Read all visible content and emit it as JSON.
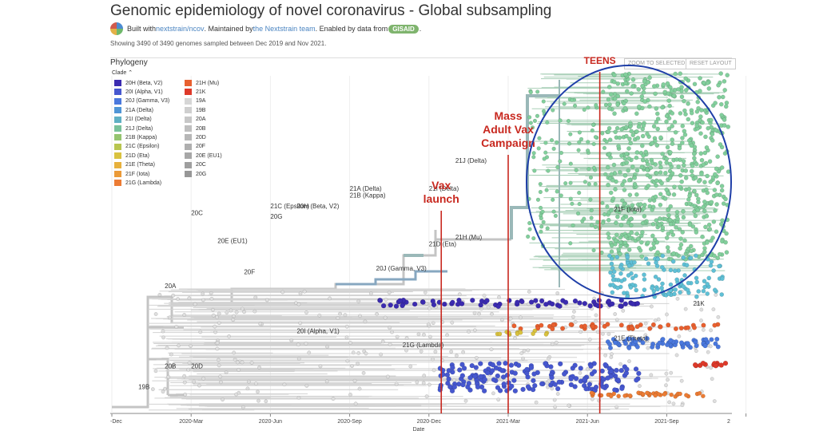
{
  "header": {
    "title": "Genomic epidemiology of novel coronavirus - Global subsampling",
    "built_prefix": "Built with ",
    "built_link": "nextstrain/ncov",
    "maintained_text": ". Maintained by ",
    "team_link": "the Nextstrain team",
    "enabled_text": ". Enabled by data from ",
    "gisaid": "GISAID",
    "end_period": ".",
    "showing": "Showing 3490 of 3490 genomes sampled between Dec 2019 and Nov 2021."
  },
  "panel": {
    "title": "Phylogeny",
    "zoom_button": "ZOOM TO SELECTED",
    "reset_button": "RESET LAYOUT"
  },
  "legend": {
    "title": "Clade",
    "col1": [
      {
        "label": "20H (Beta, V2)",
        "color": "#3b2bb0"
      },
      {
        "label": "20I (Alpha, V1)",
        "color": "#4657cf"
      },
      {
        "label": "20J (Gamma, V3)",
        "color": "#4a78dd"
      },
      {
        "label": "21A (Delta)",
        "color": "#4f95d6"
      },
      {
        "label": "21I (Delta)",
        "color": "#5fb0c4"
      },
      {
        "label": "21J (Delta)",
        "color": "#79c19a"
      },
      {
        "label": "21B (Kappa)",
        "color": "#95c46f"
      },
      {
        "label": "21C (Epsilon)",
        "color": "#b8c54f"
      },
      {
        "label": "21D (Eta)",
        "color": "#d9c23f"
      },
      {
        "label": "21E (Theta)",
        "color": "#e7b13c"
      },
      {
        "label": "21F (Iota)",
        "color": "#eb9a38"
      },
      {
        "label": "21G (Lambda)",
        "color": "#ec7c34"
      }
    ],
    "col2": [
      {
        "label": "21H (Mu)",
        "color": "#e8602f"
      },
      {
        "label": "21K",
        "color": "#de3a2a"
      },
      {
        "label": "19A",
        "color": "#d6d6d6"
      },
      {
        "label": "19B",
        "color": "#cfcfcf"
      },
      {
        "label": "20A",
        "color": "#c7c7c7"
      },
      {
        "label": "20B",
        "color": "#bfbfbf"
      },
      {
        "label": "20D",
        "color": "#b7b7b7"
      },
      {
        "label": "20F",
        "color": "#afafaf"
      },
      {
        "label": "20E (EU1)",
        "color": "#a7a7a7"
      },
      {
        "label": "20C",
        "color": "#9f9f9f"
      },
      {
        "label": "20G",
        "color": "#979797"
      }
    ]
  },
  "chart_data": {
    "type": "scatter",
    "xlabel": "Date",
    "x_ticks": [
      "-Dec",
      "2020-Mar",
      "2020-Jun",
      "2020-Sep",
      "2020-Dec",
      "2021-Mar",
      "2021-Jun",
      "2021-Sep",
      "2"
    ],
    "clade_labels": [
      {
        "label": "21J (Delta)",
        "date": "2021-Jan",
        "rank": 0.28
      },
      {
        "label": "21A (Delta)",
        "date": "2020-Sep",
        "rank": 0.36
      },
      {
        "label": "21B (Kappa)",
        "date": "2020-Sep",
        "rank": 0.38
      },
      {
        "label": "21I (Delta)",
        "date": "2020-Dec",
        "rank": 0.36
      },
      {
        "label": "21C (Epsilon)",
        "date": "2020-Jun",
        "rank": 0.41
      },
      {
        "label": "20H (Beta, V2)",
        "date": "2020-Jul",
        "rank": 0.41
      },
      {
        "label": "20C",
        "date": "2020-Mar",
        "rank": 0.43
      },
      {
        "label": "20G",
        "date": "2020-Jun",
        "rank": 0.44
      },
      {
        "label": "21F (Iota)",
        "date": "2021-Jul",
        "rank": 0.42
      },
      {
        "label": "20E (EU1)",
        "date": "2020-Apr",
        "rank": 0.51
      },
      {
        "label": "21D (Eta)",
        "date": "2020-Dec",
        "rank": 0.52
      },
      {
        "label": "21H (Mu)",
        "date": "2021-Jan",
        "rank": 0.5
      },
      {
        "label": "20F",
        "date": "2020-May",
        "rank": 0.6
      },
      {
        "label": "20J (Gamma, V3)",
        "date": "2020-Oct",
        "rank": 0.59
      },
      {
        "label": "20A",
        "date": "2020-Feb",
        "rank": 0.64
      },
      {
        "label": "21K",
        "date": "2021-Oct",
        "rank": 0.69
      },
      {
        "label": "20I (Alpha, V1)",
        "date": "2020-Jul",
        "rank": 0.77
      },
      {
        "label": "21E (Theta)",
        "date": "2021-Jul",
        "rank": 0.79
      },
      {
        "label": "21G (Lambda)",
        "date": "2020-Nov",
        "rank": 0.81
      },
      {
        "label": "20B",
        "date": "2020-Feb",
        "rank": 0.87
      },
      {
        "label": "20D",
        "date": "2020-Mar",
        "rank": 0.87
      },
      {
        "label": "19B",
        "date": "2020-Jan",
        "rank": 0.93
      }
    ],
    "annotations": [
      {
        "text": [
          "Vax",
          "launch"
        ],
        "date": "2020-Dec-15"
      },
      {
        "text": [
          "Mass",
          "Adult Vax",
          "Campaign"
        ],
        "date": "2021-Mar"
      },
      {
        "text": [
          "TEENS"
        ],
        "date": "2021-Jun-15"
      }
    ]
  }
}
